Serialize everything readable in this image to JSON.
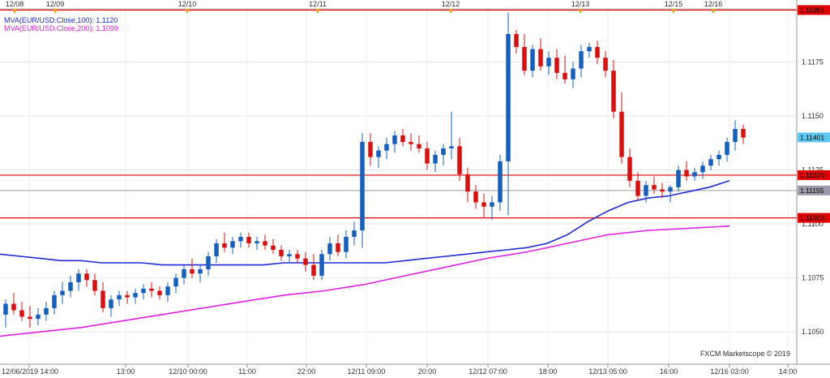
{
  "chart_data": {
    "type": "candlestick",
    "watermark": "FXCM Marketscope © 2019",
    "ylim": [
      1.1035,
      1.12
    ],
    "y_ticks": [
      {
        "v": 1.1175,
        "label": "1.1175"
      },
      {
        "v": 1.115,
        "label": "1.1150"
      },
      {
        "v": 1.1125,
        "label": "1.1125"
      },
      {
        "v": 1.11,
        "label": "1.1100"
      },
      {
        "v": 1.1075,
        "label": "1.1075"
      },
      {
        "v": 1.105,
        "label": "1.1050"
      }
    ],
    "x_labels": [
      "12/06/2019 14:00",
      "13:00",
      "12/10 00:00",
      "11:00",
      "22:00",
      "12/11 09:00",
      "20:00",
      "12/12 07:00",
      "18:00",
      "12/13 05:00",
      "16:00",
      "12/16 03:00",
      "14:00"
    ],
    "top_date_labels": [
      "12/08",
      "12/09",
      "12/10",
      "12/11",
      "12/12",
      "12/13",
      "12/15",
      "12/16"
    ],
    "legend": [
      {
        "label": "MVA(EUR/USD.Close,100): 1.1120",
        "color": "#1f2bd6"
      },
      {
        "label": "MVA(EUR/USD.Close,200): 1.1099",
        "color": "#e020e0"
      }
    ],
    "horizontal_levels": [
      {
        "value": 1.11991,
        "label": "1.11991",
        "color": "#e00000",
        "kind": "resistance"
      },
      {
        "value": 1.11401,
        "label": "1.11401",
        "color": "#5bc8f0",
        "kind": "current"
      },
      {
        "value": 1.11226,
        "label": "1.11226",
        "color": "#e00000",
        "kind": "resistance"
      },
      {
        "value": 1.11155,
        "label": "1.11155",
        "color": "#9a9aa8",
        "kind": "reference"
      },
      {
        "value": 1.11028,
        "label": "1.11028",
        "color": "#e00000",
        "kind": "support"
      }
    ],
    "series": [
      {
        "name": "MVA(EUR/USD.Close,100)",
        "color": "#1f2bd6",
        "x": [
          0,
          10,
          20,
          30,
          40,
          50,
          60,
          70,
          80,
          90,
          100,
          110,
          120,
          130,
          140,
          150,
          160,
          170,
          180,
          190,
          200,
          210,
          220,
          230,
          240,
          250,
          260,
          270,
          280,
          290,
          300,
          310,
          320,
          330,
          340,
          350,
          360
        ],
        "y": [
          1.1086,
          1.1085,
          1.1084,
          1.1083,
          1.1083,
          1.1082,
          1.1082,
          1.1082,
          1.1081,
          1.1081,
          1.1081,
          1.1081,
          1.1081,
          1.1081,
          1.1082,
          1.1082,
          1.1082,
          1.1082,
          1.1082,
          1.1082,
          1.1083,
          1.1084,
          1.1085,
          1.1086,
          1.1087,
          1.1088,
          1.1089,
          1.1091,
          1.1095,
          1.1101,
          1.1106,
          1.111,
          1.1112,
          1.1113,
          1.1115,
          1.1117,
          1.112
        ]
      },
      {
        "name": "MVA(EUR/USD.Close,200)",
        "color": "#e020e0",
        "x": [
          0,
          20,
          40,
          60,
          80,
          100,
          120,
          140,
          160,
          180,
          200,
          220,
          240,
          260,
          280,
          300,
          320,
          340,
          360
        ],
        "y": [
          1.1048,
          1.105,
          1.1052,
          1.1055,
          1.1058,
          1.1061,
          1.1064,
          1.1067,
          1.1069,
          1.1072,
          1.1076,
          1.108,
          1.1084,
          1.1087,
          1.1091,
          1.1095,
          1.1097,
          1.1098,
          1.1099
        ]
      }
    ],
    "candles": [
      [
        1.1058,
        1.1065,
        1.1052,
        1.1063
      ],
      [
        1.1063,
        1.1068,
        1.1058,
        1.106
      ],
      [
        1.106,
        1.1064,
        1.1055,
        1.1057
      ],
      [
        1.1057,
        1.1062,
        1.1052,
        1.1056
      ],
      [
        1.1056,
        1.1061,
        1.1053,
        1.1058
      ],
      [
        1.1058,
        1.1064,
        1.1055,
        1.1061
      ],
      [
        1.1061,
        1.1069,
        1.1058,
        1.1067
      ],
      [
        1.1067,
        1.1073,
        1.1063,
        1.1069
      ],
      [
        1.1069,
        1.1076,
        1.1066,
        1.1073
      ],
      [
        1.1073,
        1.1079,
        1.1069,
        1.1077
      ],
      [
        1.1077,
        1.1079,
        1.1071,
        1.1074
      ],
      [
        1.1074,
        1.1077,
        1.1067,
        1.1069
      ],
      [
        1.1069,
        1.1073,
        1.1059,
        1.1061
      ],
      [
        1.1061,
        1.1067,
        1.1057,
        1.1065
      ],
      [
        1.1065,
        1.1069,
        1.1062,
        1.1067
      ],
      [
        1.1067,
        1.1069,
        1.1063,
        1.1066
      ],
      [
        1.1066,
        1.107,
        1.1063,
        1.1068
      ],
      [
        1.1068,
        1.1072,
        1.1065,
        1.107
      ],
      [
        1.107,
        1.1073,
        1.1066,
        1.1069
      ],
      [
        1.1069,
        1.1071,
        1.1065,
        1.1067
      ],
      [
        1.1067,
        1.1073,
        1.1064,
        1.1071
      ],
      [
        1.1071,
        1.1077,
        1.1068,
        1.1075
      ],
      [
        1.1075,
        1.1081,
        1.1072,
        1.1079
      ],
      [
        1.1079,
        1.1084,
        1.1075,
        1.1077
      ],
      [
        1.1077,
        1.1081,
        1.1073,
        1.1079
      ],
      [
        1.1079,
        1.1087,
        1.1076,
        1.1085
      ],
      [
        1.1085,
        1.1093,
        1.1082,
        1.1091
      ],
      [
        1.1091,
        1.1096,
        1.1087,
        1.1089
      ],
      [
        1.1089,
        1.1094,
        1.1086,
        1.1092
      ],
      [
        1.1092,
        1.1096,
        1.1089,
        1.1094
      ],
      [
        1.1094,
        1.1096,
        1.1089,
        1.1091
      ],
      [
        1.1091,
        1.1094,
        1.1088,
        1.1092
      ],
      [
        1.1092,
        1.1095,
        1.1088,
        1.109
      ],
      [
        1.109,
        1.1093,
        1.1086,
        1.1088
      ],
      [
        1.1088,
        1.109,
        1.1083,
        1.1085
      ],
      [
        1.1085,
        1.1088,
        1.1082,
        1.1086
      ],
      [
        1.1086,
        1.1088,
        1.1082,
        1.1084
      ],
      [
        1.1084,
        1.1087,
        1.1078,
        1.1081
      ],
      [
        1.1081,
        1.1086,
        1.1074,
        1.1076
      ],
      [
        1.1076,
        1.1088,
        1.1074,
        1.1086
      ],
      [
        1.1086,
        1.1094,
        1.1083,
        1.1091
      ],
      [
        1.1091,
        1.1095,
        1.1085,
        1.1087
      ],
      [
        1.1087,
        1.1097,
        1.1084,
        1.1094
      ],
      [
        1.1094,
        1.1101,
        1.109,
        1.1097
      ],
      [
        1.1097,
        1.1142,
        1.1089,
        1.1138
      ],
      [
        1.1138,
        1.1142,
        1.1127,
        1.1131
      ],
      [
        1.1131,
        1.1136,
        1.1126,
        1.1134
      ],
      [
        1.1134,
        1.114,
        1.113,
        1.1137
      ],
      [
        1.1137,
        1.1143,
        1.1133,
        1.1141
      ],
      [
        1.1141,
        1.1144,
        1.1136,
        1.1138
      ],
      [
        1.1138,
        1.1142,
        1.1134,
        1.1137
      ],
      [
        1.1137,
        1.1141,
        1.1133,
        1.1135
      ],
      [
        1.1135,
        1.1138,
        1.1125,
        1.1128
      ],
      [
        1.1128,
        1.1134,
        1.1124,
        1.1132
      ],
      [
        1.1132,
        1.1137,
        1.1127,
        1.1135
      ],
      [
        1.1135,
        1.1152,
        1.113,
        1.1136
      ],
      [
        1.1136,
        1.114,
        1.112,
        1.1123
      ],
      [
        1.1123,
        1.1126,
        1.111,
        1.1115
      ],
      [
        1.1115,
        1.1118,
        1.1107,
        1.111
      ],
      [
        1.111,
        1.1114,
        1.1103,
        1.1108
      ],
      [
        1.1108,
        1.1113,
        1.1102,
        1.111
      ],
      [
        1.111,
        1.1132,
        1.1106,
        1.1129
      ],
      [
        1.1129,
        1.1198,
        1.1104,
        1.1188
      ],
      [
        1.1188,
        1.119,
        1.1179,
        1.1182
      ],
      [
        1.1182,
        1.1188,
        1.1169,
        1.1171
      ],
      [
        1.1171,
        1.1183,
        1.1168,
        1.1181
      ],
      [
        1.1181,
        1.1186,
        1.1171,
        1.1173
      ],
      [
        1.1173,
        1.118,
        1.1169,
        1.1177
      ],
      [
        1.1177,
        1.1181,
        1.1167,
        1.117
      ],
      [
        1.117,
        1.1178,
        1.1165,
        1.1167
      ],
      [
        1.1167,
        1.1175,
        1.1163,
        1.1172
      ],
      [
        1.1172,
        1.1183,
        1.1168,
        1.118
      ],
      [
        1.118,
        1.1184,
        1.1177,
        1.1182
      ],
      [
        1.1182,
        1.1185,
        1.1174,
        1.1177
      ],
      [
        1.1177,
        1.118,
        1.1168,
        1.1171
      ],
      [
        1.1171,
        1.1176,
        1.1149,
        1.1152
      ],
      [
        1.1152,
        1.1161,
        1.1128,
        1.1131
      ],
      [
        1.1131,
        1.1135,
        1.1117,
        1.112
      ],
      [
        1.112,
        1.1124,
        1.1111,
        1.1113
      ],
      [
        1.1113,
        1.112,
        1.111,
        1.1118
      ],
      [
        1.1118,
        1.1122,
        1.1114,
        1.1116
      ],
      [
        1.1116,
        1.1119,
        1.1112,
        1.1115
      ],
      [
        1.1115,
        1.1118,
        1.111,
        1.1117
      ],
      [
        1.1117,
        1.1127,
        1.1115,
        1.1125
      ],
      [
        1.1125,
        1.1129,
        1.112,
        1.1122
      ],
      [
        1.1122,
        1.1126,
        1.112,
        1.1124
      ],
      [
        1.1124,
        1.1129,
        1.1121,
        1.1127
      ],
      [
        1.1127,
        1.1132,
        1.1125,
        1.113
      ],
      [
        1.113,
        1.1134,
        1.1127,
        1.1132
      ],
      [
        1.1132,
        1.114,
        1.1129,
        1.1138
      ],
      [
        1.1138,
        1.1148,
        1.1134,
        1.1144
      ],
      [
        1.1144,
        1.1146,
        1.1137,
        1.114
      ]
    ]
  }
}
